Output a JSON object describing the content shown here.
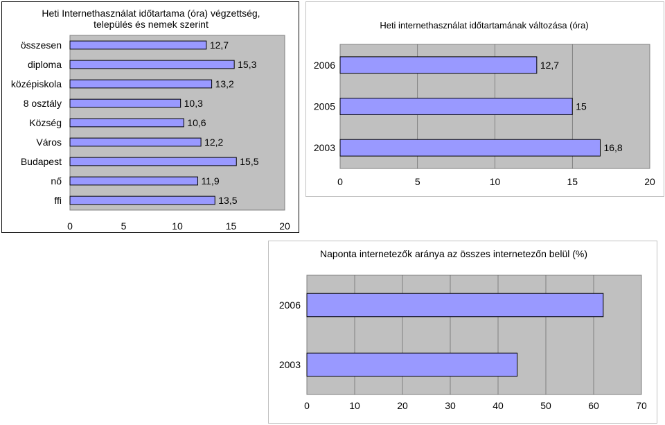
{
  "chart_data": [
    {
      "type": "bar",
      "orientation": "horizontal",
      "title": "Heti Internethasználat időtartama (óra) végzettség, település és nemek szerint",
      "title_lines": [
        "Heti Internethasználat időtartama (óra) végzettség,",
        "település és nemek szerint"
      ],
      "categories": [
        "összesen",
        "diploma",
        "középiskola",
        "8 osztály",
        "Község",
        "Város",
        "Budapest",
        "nő",
        "ffi"
      ],
      "values": [
        12.7,
        15.3,
        13.2,
        10.3,
        10.6,
        12.2,
        15.5,
        11.9,
        13.5
      ],
      "value_labels": [
        "12,7",
        "15,3",
        "13,2",
        "10,3",
        "10,6",
        "12,2",
        "15,5",
        "11,9",
        "13,5"
      ],
      "xlim": [
        0,
        20
      ],
      "xticks": [
        "0",
        "5",
        "10",
        "15",
        "20"
      ],
      "grid": false,
      "plot_background": "#c0c0c0",
      "bar_color": "#9999ff"
    },
    {
      "type": "bar",
      "orientation": "horizontal",
      "title": "Heti internethasználat időtartamának változása (óra)",
      "categories": [
        "2006",
        "2005",
        "2003"
      ],
      "values": [
        12.7,
        15,
        16.8
      ],
      "value_labels": [
        "12,7",
        "15",
        "16,8"
      ],
      "xlim": [
        0,
        20
      ],
      "xticks": [
        "0",
        "5",
        "10",
        "15",
        "20"
      ],
      "grid": true,
      "plot_background": "#c0c0c0",
      "bar_color": "#9999ff"
    },
    {
      "type": "bar",
      "orientation": "horizontal",
      "title": "Naponta internetezők aránya az összes internetezőn belül (%)",
      "categories": [
        "2006",
        "2003"
      ],
      "values": [
        62,
        44
      ],
      "xlim": [
        0,
        70
      ],
      "xticks": [
        "0",
        "10",
        "20",
        "30",
        "40",
        "50",
        "60",
        "70"
      ],
      "grid": true,
      "plot_background": "#c0c0c0",
      "bar_color": "#9999ff"
    }
  ]
}
